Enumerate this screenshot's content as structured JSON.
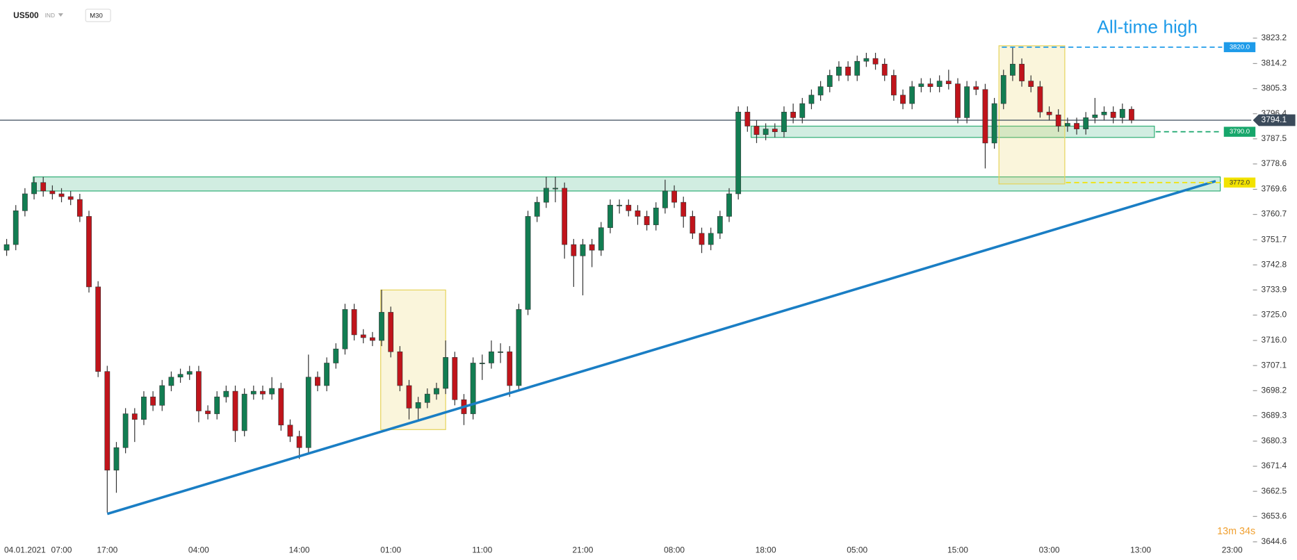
{
  "chart_data": {
    "type": "candlestick",
    "title": "US500",
    "symbol_type": "IND",
    "timeframe": "M30",
    "annotation": "All-time high",
    "countdown": "13m 34s",
    "categories": [
      null,
      null,
      "04.01.2021",
      null,
      null,
      null,
      "07:00",
      null,
      null,
      null,
      null,
      "17:00",
      null,
      null,
      null,
      null,
      null,
      null,
      null,
      null,
      null,
      "04:00",
      null,
      null,
      null,
      null,
      null,
      null,
      null,
      null,
      null,
      null,
      "14:00",
      null,
      null,
      null,
      null,
      null,
      null,
      null,
      null,
      null,
      "01:00",
      null,
      null,
      null,
      null,
      null,
      null,
      null,
      null,
      null,
      "11:00",
      null,
      null,
      null,
      null,
      null,
      null,
      null,
      null,
      null,
      null,
      "21:00",
      null,
      null,
      null,
      null,
      null,
      null,
      null,
      null,
      null,
      "08:00",
      null,
      null,
      null,
      null,
      null,
      null,
      null,
      null,
      null,
      "18:00",
      null,
      null,
      null,
      null,
      null,
      null,
      null,
      null,
      null,
      "05:00",
      null,
      null,
      null,
      null,
      null,
      null,
      null,
      null,
      null,
      null,
      "15:00",
      null,
      null,
      null,
      null,
      null,
      null,
      null,
      null,
      null,
      "03:00",
      null,
      null,
      null,
      null,
      null,
      null,
      null,
      null,
      null,
      "13:00",
      null,
      null,
      null,
      null,
      null,
      null,
      null,
      null,
      null,
      "23:00",
      null,
      null
    ],
    "open": [
      3748,
      3750,
      3762,
      3768,
      3772,
      3769,
      3768,
      3767,
      3766,
      3760,
      3735,
      3705,
      3670,
      3678,
      3690,
      3688,
      3696,
      3693,
      3700,
      3703,
      3704,
      3705,
      3691,
      3690,
      3696,
      3698,
      3684,
      3697,
      3698,
      3697,
      3699,
      3686,
      3682,
      3678,
      3703,
      3700,
      3708,
      3713,
      3727,
      3718,
      3717,
      3716,
      3726,
      3712,
      3700,
      3692,
      3694,
      3697,
      3699,
      3710,
      3695,
      3690,
      3708,
      3708,
      3712,
      3712,
      3700,
      3727,
      3760,
      3765,
      3770,
      3770,
      3750,
      3746,
      3750,
      3748,
      3756,
      3764,
      3764,
      3762,
      3760,
      3757,
      3763,
      3769,
      3765,
      3760,
      3754,
      3750,
      3754,
      3760,
      3768,
      3797,
      3792,
      3789,
      3791,
      3790,
      3797,
      3795,
      3800,
      3803,
      3806,
      3810,
      3813,
      3810,
      3815,
      3816,
      3814,
      3810,
      3803,
      3800,
      3806,
      3807,
      3806,
      3808,
      3807,
      3795,
      3806,
      3805,
      3786,
      3800,
      3810,
      3814,
      3808,
      3806,
      3797,
      3796,
      3792,
      3793,
      3791,
      3795,
      3796,
      3797,
      3795,
      3798,
      null,
      null,
      null,
      null,
      null,
      null,
      null,
      null,
      null,
      null,
      null,
      null,
      null
    ],
    "high": [
      3752,
      3764,
      3770,
      3774,
      3774,
      3771,
      3770,
      3769,
      3768,
      3762,
      3737,
      3707,
      3680,
      3692,
      3692,
      3698,
      3698,
      3702,
      3705,
      3706,
      3707,
      3707,
      3693,
      3698,
      3700,
      3700,
      3699,
      3700,
      3700,
      3703,
      3701,
      3688,
      3684,
      3711,
      3705,
      3710,
      3715,
      3729,
      3729,
      3720,
      3719,
      3734,
      3728,
      3714,
      3702,
      3696,
      3699,
      3701,
      3716,
      3712,
      3697,
      3710,
      3711,
      3716,
      3715,
      3714,
      3729,
      3762,
      3767,
      3774,
      3774,
      3772,
      3752,
      3752,
      3752,
      3758,
      3766,
      3766,
      3766,
      3764,
      3762,
      3765,
      3773,
      3771,
      3767,
      3762,
      3756,
      3756,
      3762,
      3770,
      3799,
      3799,
      3794,
      3793,
      3793,
      3799,
      3800,
      3802,
      3805,
      3808,
      3812,
      3815,
      3815,
      3817,
      3818,
      3818,
      3816,
      3812,
      3805,
      3808,
      3809,
      3809,
      3810,
      3812,
      3809,
      3808,
      3808,
      3807,
      3802,
      3812,
      3820,
      3816,
      3810,
      3808,
      3799,
      3798,
      3795,
      3795,
      3797,
      3802,
      3799,
      3799,
      3800,
      3799,
      null,
      null,
      null,
      null,
      null,
      null,
      null,
      null,
      null,
      null,
      null,
      null,
      null
    ],
    "low": [
      3746,
      3748,
      3760,
      3766,
      3767,
      3766,
      3765,
      3764,
      3758,
      3733,
      3703,
      3655,
      3662,
      3676,
      3680,
      3686,
      3691,
      3691,
      3698,
      3701,
      3702,
      3687,
      3688,
      3688,
      3694,
      3680,
      3682,
      3695,
      3695,
      3695,
      3684,
      3680,
      3674,
      3676,
      3698,
      3698,
      3706,
      3711,
      3716,
      3715,
      3714,
      3714,
      3710,
      3698,
      3688,
      3688,
      3692,
      3695,
      3697,
      3693,
      3686,
      3688,
      3702,
      3706,
      3708,
      3696,
      3698,
      3725,
      3758,
      3763,
      3765,
      3745,
      3735,
      3732,
      3742,
      3746,
      3754,
      3761,
      3760,
      3757,
      3755,
      3755,
      3761,
      3763,
      3756,
      3752,
      3747,
      3748,
      3752,
      3758,
      3766,
      3790,
      3786,
      3787,
      3788,
      3788,
      3793,
      3793,
      3798,
      3801,
      3804,
      3808,
      3808,
      3808,
      3813,
      3812,
      3808,
      3801,
      3798,
      3798,
      3804,
      3804,
      3804,
      3805,
      3793,
      3793,
      3803,
      3777,
      3784,
      3798,
      3808,
      3806,
      3804,
      3795,
      3794,
      3790,
      3790,
      3789,
      3789,
      3793,
      3794,
      3793,
      3793,
      3793,
      null,
      null,
      null,
      null,
      null,
      null,
      null,
      null,
      null,
      null,
      null,
      null,
      null
    ],
    "close": [
      3750,
      3762,
      3768,
      3772,
      3769,
      3768,
      3767,
      3766,
      3760,
      3735,
      3705,
      3670,
      3678,
      3690,
      3688,
      3696,
      3693,
      3700,
      3703,
      3704,
      3705,
      3691,
      3690,
      3696,
      3698,
      3684,
      3697,
      3698,
      3697,
      3699,
      3686,
      3682,
      3678,
      3703,
      3700,
      3708,
      3713,
      3727,
      3718,
      3717,
      3716,
      3726,
      3712,
      3700,
      3692,
      3694,
      3697,
      3699,
      3710,
      3695,
      3690,
      3708,
      3708,
      3712,
      3712,
      3700,
      3727,
      3760,
      3765,
      3770,
      3770,
      3750,
      3746,
      3750,
      3748,
      3756,
      3764,
      3764,
      3762,
      3760,
      3757,
      3763,
      3769,
      3765,
      3760,
      3754,
      3750,
      3754,
      3760,
      3768,
      3797,
      3792,
      3789,
      3791,
      3790,
      3797,
      3795,
      3800,
      3803,
      3806,
      3810,
      3813,
      3810,
      3815,
      3816,
      3814,
      3810,
      3803,
      3800,
      3806,
      3807,
      3806,
      3808,
      3807,
      3795,
      3806,
      3805,
      3786,
      3800,
      3810,
      3814,
      3808,
      3806,
      3797,
      3796,
      3792,
      3793,
      3791,
      3795,
      3796,
      3797,
      3795,
      3798,
      3794.1,
      null,
      null,
      null,
      null,
      null,
      null,
      null,
      null,
      null,
      null,
      null,
      null,
      null
    ],
    "up_color": "#127d52",
    "down_color": "#c0141b",
    "ylim": [
      3641.4,
      3826.4
    ],
    "yticks": [
      3823.2,
      3814.2,
      3805.3,
      3796.4,
      3787.5,
      3778.6,
      3769.6,
      3760.7,
      3751.7,
      3742.8,
      3733.9,
      {
        "value": 3725,
        "label": "3725.0"
      },
      {
        "value": 3716,
        "label": "3716.0"
      },
      3707.1,
      3698.2,
      3689.3,
      3680.3,
      3671.4,
      3662.5,
      3653.6,
      3644.6
    ],
    "current_price": 3794.1,
    "price_labels": [
      {
        "value": 3820,
        "label": "3820.0",
        "color": "#1e9be9"
      },
      {
        "value": 3790,
        "label": "3790.0",
        "color": "#17a66b"
      },
      {
        "value": 3772,
        "label": "3772.0",
        "color": "#f2e200"
      }
    ],
    "trendline": {
      "x": [
        11,
        132.2
      ],
      "y": [
        3654.5,
        3772.5
      ],
      "color": "#1a7ec4"
    },
    "zones": [
      {
        "x": [
          2.9,
          132.7
        ],
        "y": [
          3769,
          3774
        ],
        "color": "#2fae75"
      },
      {
        "x": [
          81.4,
          125.5
        ],
        "y": [
          3788,
          3792
        ],
        "color": "#2fae75"
      },
      {
        "x": [
          40.9,
          48
        ],
        "y": [
          3684.4,
          3733.9
        ],
        "color": "#e6d35a"
      },
      {
        "x": [
          108.5,
          115.7
        ],
        "y": [
          3771.5,
          3820.5
        ],
        "color": "#e6d35a"
      }
    ]
  }
}
